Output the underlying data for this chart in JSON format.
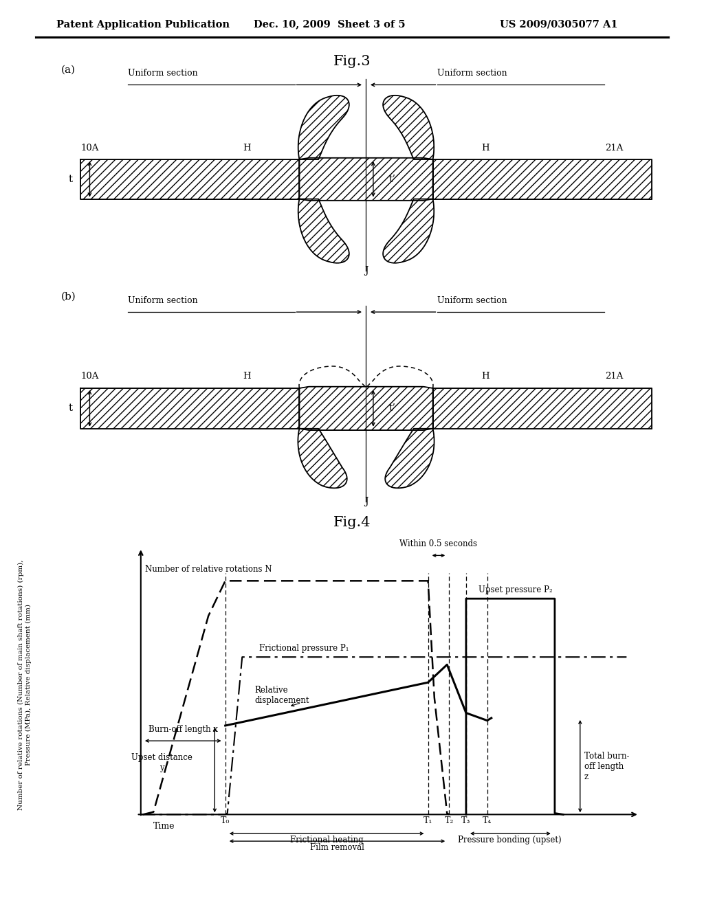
{
  "title_header": "Patent Application Publication",
  "date_header": "Dec. 10, 2009  Sheet 3 of 5",
  "patent_header": "US 2009/0305077 A1",
  "fig3_title": "Fig.3",
  "fig4_title": "Fig.4",
  "background_color": "#ffffff",
  "text_color": "#000000",
  "label_a": "(a)",
  "label_b": "(b)",
  "uniform_section": "Uniform section",
  "label_10A": "10A",
  "label_21A": "21A",
  "label_H": "H",
  "label_t": "t",
  "label_t_prime": "t’",
  "label_J": "J",
  "fig4_ylabel": "Number of relative rotations (Number of main shaft rotations) (rpm),\nPressure (MPa), Relative displacement (mm)"
}
